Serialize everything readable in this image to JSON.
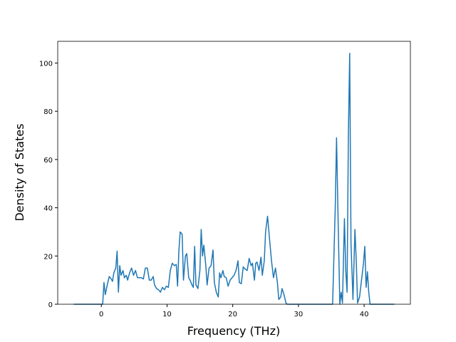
{
  "chart_data": {
    "type": "line",
    "xlabel": "Frequency (THz)",
    "ylabel": "Density of States",
    "color": "#1f77b4",
    "xlim": [
      -6.64,
      47.04
    ],
    "ylim": [
      0,
      109
    ],
    "xticks": [
      0,
      10,
      20,
      30,
      40
    ],
    "yticks": [
      0,
      20,
      40,
      60,
      80,
      100
    ],
    "x": [
      -4.2,
      0,
      0.2,
      0.4,
      0.6,
      0.9,
      1.2,
      1.5,
      1.7,
      1.9,
      2.2,
      2.4,
      2.6,
      2.8,
      3.0,
      3.3,
      3.5,
      3.8,
      4.0,
      4.3,
      4.6,
      4.9,
      5.2,
      5.5,
      5.8,
      6.1,
      6.4,
      6.7,
      7.0,
      7.3,
      7.6,
      7.9,
      8.1,
      8.4,
      8.7,
      9.0,
      9.3,
      9.6,
      9.9,
      10.2,
      10.5,
      10.8,
      11.1,
      11.4,
      11.6,
      11.8,
      12.0,
      12.3,
      12.5,
      12.8,
      13.0,
      13.3,
      13.5,
      13.8,
      14.0,
      14.2,
      14.4,
      14.7,
      15.0,
      15.2,
      15.4,
      15.6,
      15.9,
      16.1,
      16.4,
      16.7,
      17.0,
      17.2,
      17.5,
      17.8,
      18.0,
      18.2,
      18.5,
      18.7,
      19.0,
      19.3,
      19.6,
      19.9,
      20.2,
      20.5,
      20.8,
      21.0,
      21.3,
      21.6,
      21.9,
      22.2,
      22.5,
      22.8,
      23.0,
      23.3,
      23.5,
      23.7,
      24.0,
      24.3,
      24.5,
      24.8,
      25.0,
      25.3,
      25.6,
      25.9,
      26.2,
      26.5,
      26.8,
      27.0,
      27.3,
      27.5,
      27.8,
      28.1,
      28.3,
      35.2,
      35.6,
      35.8,
      36.0,
      36.3,
      36.5,
      36.7,
      37.0,
      37.2,
      37.4,
      37.6,
      37.8,
      38.0,
      38.3,
      38.6,
      38.8,
      39.0,
      39.3,
      39.6,
      39.9,
      40.1,
      40.3,
      40.5,
      40.7,
      40.9,
      44.6
    ],
    "values": [
      0,
      0,
      0,
      9,
      4,
      8,
      11.5,
      10.5,
      9.5,
      13,
      15,
      22,
      5,
      16,
      12,
      14,
      11,
      12,
      10,
      13,
      15,
      12,
      14,
      11,
      11,
      11,
      10.5,
      15,
      15,
      10,
      10,
      11.5,
      8,
      6.5,
      6,
      5,
      7,
      6,
      7.5,
      7,
      14,
      17,
      16,
      16.5,
      7.5,
      22,
      30,
      29,
      10,
      20,
      21,
      11,
      10,
      8,
      7,
      24,
      8,
      6.5,
      14,
      31,
      20,
      24.5,
      16,
      8,
      15,
      16,
      22.5,
      9,
      5,
      3,
      13,
      11,
      14,
      11.5,
      11,
      7.5,
      10,
      11,
      12,
      14,
      18,
      9,
      8.5,
      15.5,
      14.5,
      14,
      19,
      16,
      17,
      10,
      17,
      17.5,
      14,
      19.5,
      12,
      18,
      30,
      36.5,
      27,
      18,
      11,
      15,
      9,
      2,
      3,
      6.5,
      4,
      0.5,
      0,
      0,
      40,
      69,
      40,
      0,
      5,
      0.5,
      35.5,
      14,
      5,
      70,
      104,
      25,
      2,
      31,
      18,
      0.5,
      3,
      10,
      17,
      24,
      7,
      13.5,
      5,
      0,
      0
    ]
  }
}
